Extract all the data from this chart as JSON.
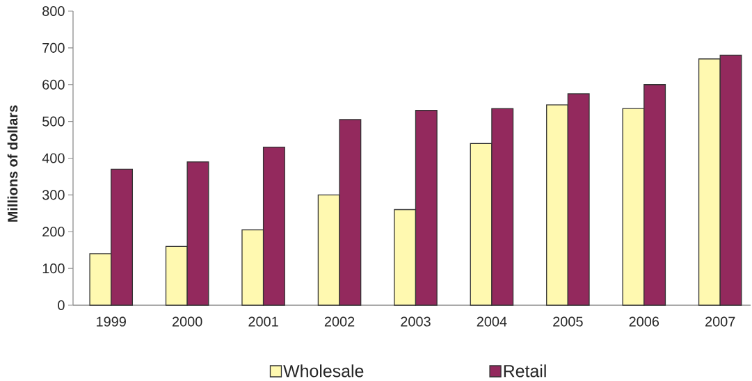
{
  "chart_data": {
    "type": "bar",
    "ylabel": "Millions of dollars",
    "categories": [
      "1999",
      "2000",
      "2001",
      "2002",
      "2003",
      "2004",
      "2005",
      "2006",
      "2007"
    ],
    "series": [
      {
        "name": "Wholesale",
        "color": "#fff9b0",
        "values": [
          140,
          160,
          205,
          300,
          260,
          440,
          545,
          535,
          670
        ]
      },
      {
        "name": "Retail",
        "color": "#93295d",
        "values": [
          370,
          390,
          430,
          505,
          530,
          535,
          575,
          600,
          680
        ]
      }
    ],
    "ylim": [
      0,
      800
    ],
    "yticks": [
      0,
      100,
      200,
      300,
      400,
      500,
      600,
      700,
      800
    ],
    "legend": "bottom"
  }
}
